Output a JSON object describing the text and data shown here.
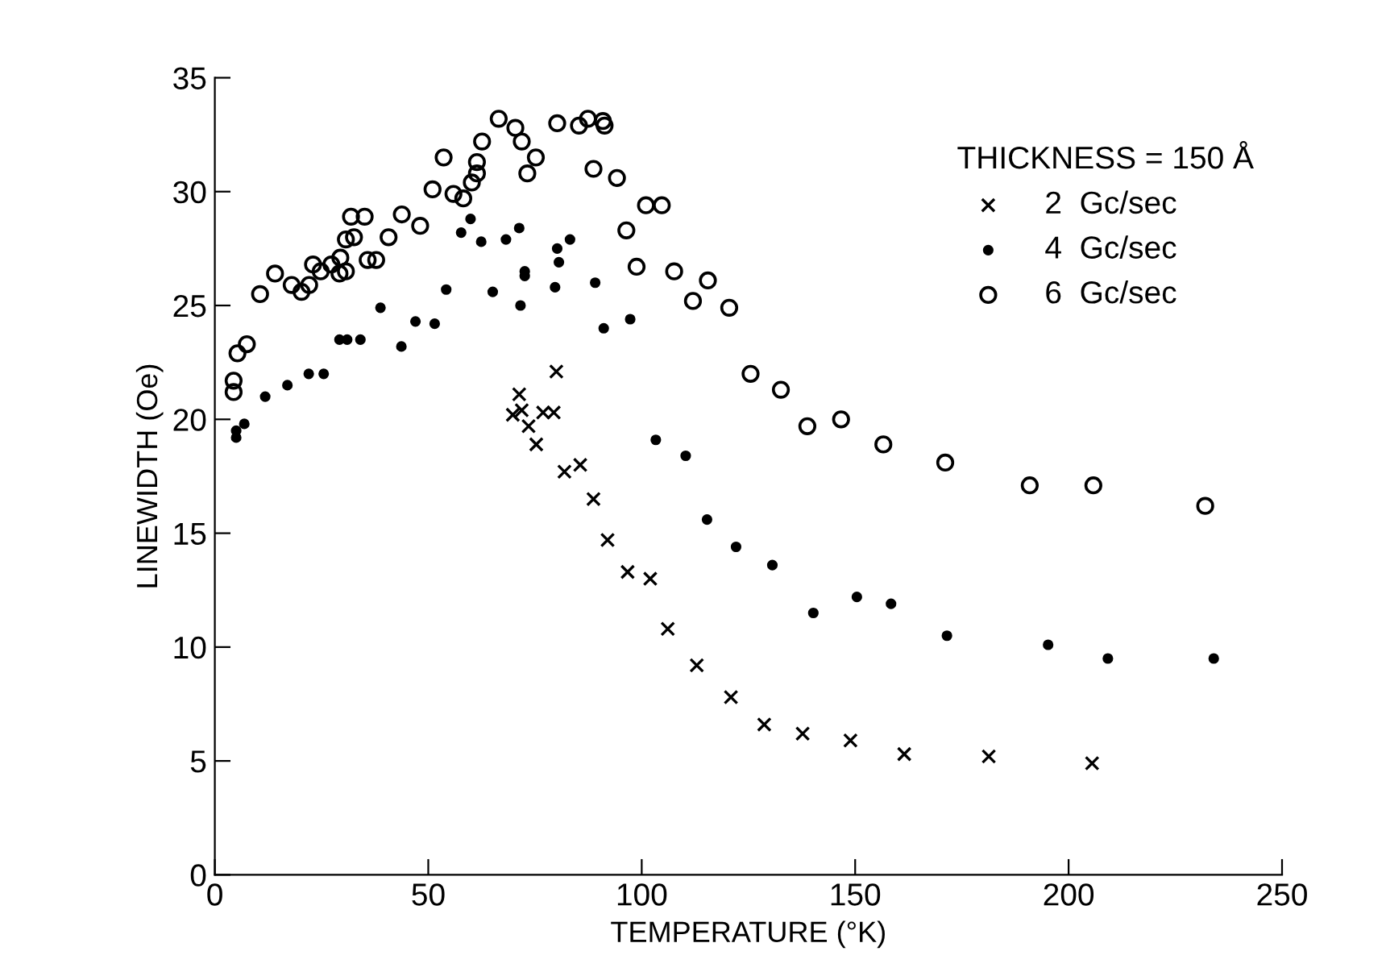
{
  "chart_data": {
    "type": "scatter",
    "xlabel": "TEMPERATURE (°K)",
    "ylabel": "LINEWIDTH (Oe)",
    "legend_title": "THICKNESS = 150 Å",
    "xlim": [
      0,
      250
    ],
    "ylim": [
      0,
      35
    ],
    "xticks": [
      0,
      50,
      100,
      150,
      200,
      250
    ],
    "yticks": [
      0,
      5,
      10,
      15,
      20,
      25,
      30,
      35
    ],
    "grid": false,
    "legend": "top right",
    "series": [
      {
        "name": "2  Gc/sec",
        "color": "#000000",
        "marker": "cross",
        "x": [
          80.0,
          71.3,
          69.8,
          71.9,
          73.5,
          76.9,
          79.4,
          75.3,
          81.9,
          85.6,
          88.7,
          92.0,
          96.7,
          102.0,
          106.1,
          112.9,
          120.9,
          128.7,
          137.7,
          148.9,
          161.5,
          181.3,
          205.5
        ],
        "values": [
          22.1,
          21.1,
          20.2,
          20.4,
          19.7,
          20.3,
          20.3,
          18.9,
          17.7,
          18.0,
          16.5,
          14.7,
          13.3,
          13.0,
          10.8,
          9.2,
          7.8,
          6.6,
          6.2,
          5.9,
          5.3,
          5.2,
          4.9
        ]
      },
      {
        "name": "4  Gc/sec",
        "color": "#000000",
        "marker": "circle",
        "x": [
          5.0,
          5.0,
          6.9,
          11.8,
          17.0,
          22.0,
          25.5,
          29.2,
          31.0,
          34.1,
          38.8,
          43.7,
          47.0,
          51.5,
          54.2,
          57.7,
          59.9,
          62.4,
          65.1,
          68.2,
          71.3,
          71.6,
          72.6,
          72.6,
          80.2,
          80.6,
          83.2,
          79.7,
          89.1,
          91.1,
          97.3,
          103.3,
          110.3,
          115.3,
          122.1,
          130.6,
          140.2,
          150.4,
          158.4,
          171.5,
          195.2,
          209.2,
          234.0
        ],
        "values": [
          19.2,
          19.5,
          19.8,
          21.0,
          21.5,
          22.0,
          22.0,
          23.5,
          23.5,
          23.5,
          24.9,
          23.2,
          24.3,
          24.2,
          25.7,
          28.2,
          28.8,
          27.8,
          25.6,
          27.9,
          28.4,
          25.0,
          26.5,
          26.3,
          27.5,
          26.9,
          27.9,
          25.8,
          26.0,
          24.0,
          24.4,
          19.1,
          18.4,
          15.6,
          14.4,
          13.6,
          11.5,
          12.2,
          11.9,
          10.5,
          10.1,
          9.5,
          9.5
        ]
      },
      {
        "name": "6  Gc/sec",
        "color": "#000000",
        "marker": "circle",
        "x": [
          4.4,
          4.4,
          5.3,
          7.5,
          10.6,
          14.1,
          18.0,
          20.3,
          22.1,
          23.0,
          24.8,
          27.3,
          29.4,
          29.2,
          30.7,
          30.7,
          32.6,
          31.9,
          35.1,
          35.8,
          37.8,
          40.7,
          43.8,
          48.1,
          51.0,
          53.6,
          55.9,
          58.2,
          60.2,
          61.4,
          61.4,
          62.6,
          66.5,
          70.4,
          71.9,
          75.2,
          73.2,
          80.2,
          85.3,
          87.4,
          90.9,
          91.3,
          88.7,
          94.2,
          101.0,
          104.7,
          96.4,
          98.8,
          107.6,
          115.5,
          112.0,
          120.5,
          125.5,
          132.6,
          138.8,
          146.7,
          156.6,
          171.1,
          190.9,
          205.8,
          232.0
        ],
        "values": [
          21.7,
          21.2,
          22.9,
          23.3,
          25.5,
          26.4,
          25.9,
          25.6,
          25.9,
          26.8,
          26.5,
          26.8,
          27.1,
          26.4,
          26.5,
          27.9,
          28.0,
          28.9,
          28.9,
          27.0,
          27.0,
          28.0,
          29.0,
          28.5,
          30.1,
          31.5,
          29.9,
          29.7,
          30.4,
          30.8,
          31.3,
          32.2,
          33.2,
          32.8,
          32.2,
          31.5,
          30.8,
          33.0,
          32.9,
          33.2,
          33.1,
          32.9,
          31.0,
          30.6,
          29.4,
          29.4,
          28.3,
          26.7,
          26.5,
          26.1,
          25.2,
          24.9,
          22.0,
          21.3,
          19.7,
          20.0,
          18.9,
          18.1,
          17.1,
          17.1,
          16.2
        ]
      }
    ]
  }
}
